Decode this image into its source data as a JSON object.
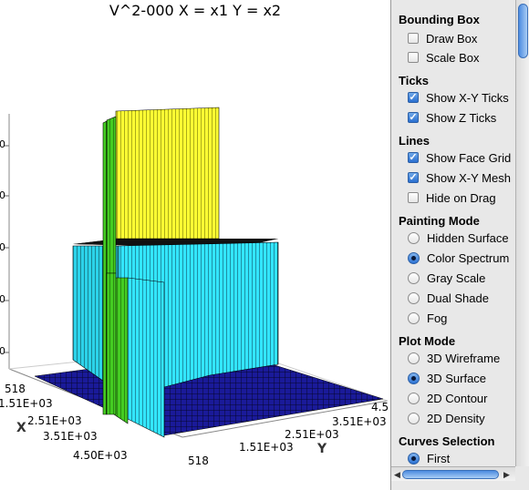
{
  "plot": {
    "title": "V^2-000 X = x1 Y = x2",
    "axis_x_name": "X",
    "axis_y_name": "Y",
    "x_ticks": [
      "518",
      "1.51E+03",
      "2.51E+03",
      "3.51E+03",
      "4.50E+03"
    ],
    "y_ticks": [
      "518",
      "1.51E+03",
      "2.51E+03",
      "3.51E+03",
      "4.5"
    ],
    "z_tick_marks": [
      "0",
      "0",
      "0",
      "0",
      "0"
    ],
    "colors": {
      "top": "#ffff33",
      "cyan": "#33e6ff",
      "green": "#33cc33",
      "floor": "#1a1a99",
      "mesh": "#000000"
    }
  },
  "panel": {
    "bounding_box": {
      "title": "Bounding Box",
      "draw_box": "Draw Box",
      "scale_box": "Scale Box",
      "draw_box_checked": false,
      "scale_box_checked": false
    },
    "ticks": {
      "title": "Ticks",
      "show_xy": "Show X-Y Ticks",
      "show_z": "Show Z Ticks",
      "show_xy_checked": true,
      "show_z_checked": true
    },
    "lines": {
      "title": "Lines",
      "face_grid": "Show Face Grid",
      "xy_mesh": "Show X-Y Mesh",
      "hide_drag": "Hide on Drag",
      "face_grid_checked": true,
      "xy_mesh_checked": true,
      "hide_drag_checked": false
    },
    "painting_mode": {
      "title": "Painting Mode",
      "options": [
        "Hidden Surface",
        "Color Spectrum",
        "Gray Scale",
        "Dual Shade",
        "Fog"
      ],
      "selected": "Color Spectrum"
    },
    "plot_mode": {
      "title": "Plot Mode",
      "options": [
        "3D Wireframe",
        "3D Surface",
        "2D Contour",
        "2D Density"
      ],
      "selected": "3D Surface"
    },
    "curves_selection": {
      "title": "Curves Selection",
      "options": [
        "First"
      ],
      "selected": "First"
    }
  }
}
